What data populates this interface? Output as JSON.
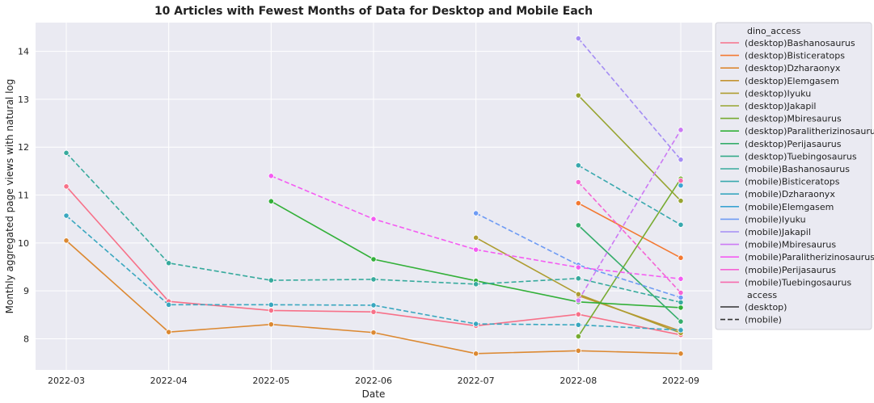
{
  "chart_data": {
    "type": "line",
    "title": "10 Articles with Fewest Months of Data for Desktop and Mobile Each",
    "xlabel": "Date",
    "ylabel": "Monthly aggregated page views with natural log",
    "x": [
      "2022-03",
      "2022-04",
      "2022-05",
      "2022-06",
      "2022-07",
      "2022-08",
      "2022-09"
    ],
    "ylim": [
      7.35,
      14.6
    ],
    "yticks": [
      8,
      9,
      10,
      11,
      12,
      13,
      14
    ],
    "grid": true,
    "legend_placement": "outside-right",
    "legend_title_hue": "dino_access",
    "legend_title_style": "access",
    "style_entries": [
      {
        "label": "(desktop)",
        "dash": "solid"
      },
      {
        "label": "(mobile)",
        "dash": "dashed"
      }
    ],
    "series": [
      {
        "name": "(desktop)Bashanosaurus",
        "color": "#f77189",
        "dash": "solid",
        "values": [
          11.18,
          8.78,
          8.59,
          8.56,
          8.27,
          8.51,
          8.08
        ]
      },
      {
        "name": "(desktop)Bisticeratops",
        "color": "#f37932",
        "dash": "solid",
        "values": [
          null,
          null,
          null,
          null,
          null,
          10.83,
          9.69
        ]
      },
      {
        "name": "(desktop)Dzharaonyx",
        "color": "#dc8932",
        "dash": "solid",
        "values": [
          10.05,
          8.14,
          8.3,
          8.13,
          7.69,
          7.75,
          7.69
        ]
      },
      {
        "name": "(desktop)Elemgasem",
        "color": "#c39532",
        "dash": "solid",
        "values": [
          null,
          null,
          null,
          null,
          null,
          8.9,
          8.16
        ]
      },
      {
        "name": "(desktop)Iyuku",
        "color": "#ae9d31",
        "dash": "solid",
        "values": [
          null,
          null,
          null,
          null,
          10.11,
          8.93,
          8.12
        ]
      },
      {
        "name": "(desktop)Jakapil",
        "color": "#97a431",
        "dash": "solid",
        "values": [
          null,
          null,
          null,
          null,
          null,
          13.08,
          10.88
        ]
      },
      {
        "name": "(desktop)Mbiresaurus",
        "color": "#77ab31",
        "dash": "solid",
        "values": [
          null,
          null,
          null,
          null,
          null,
          8.05,
          11.34
        ]
      },
      {
        "name": "(desktop)Paralitherizinosaurus",
        "color": "#33b039",
        "dash": "solid",
        "values": [
          null,
          null,
          10.87,
          9.66,
          9.21,
          8.77,
          8.65
        ]
      },
      {
        "name": "(desktop)Perijasaurus",
        "color": "#35ad6b",
        "dash": "solid",
        "values": [
          null,
          null,
          null,
          null,
          null,
          10.37,
          8.36
        ]
      },
      {
        "name": "(desktop)Tuebingosaurus",
        "color": "#36ab8a",
        "dash": "solid",
        "values": [
          null,
          null,
          null,
          null,
          null,
          null,
          8.2
        ]
      },
      {
        "name": "(mobile)Bashanosaurus",
        "color": "#37aa9d",
        "dash": "dashed",
        "values": [
          11.88,
          9.58,
          9.22,
          9.24,
          9.14,
          9.26,
          8.76
        ]
      },
      {
        "name": "(mobile)Bisticeratops",
        "color": "#38a8ae",
        "dash": "dashed",
        "values": [
          null,
          null,
          null,
          null,
          null,
          11.62,
          10.38
        ]
      },
      {
        "name": "(mobile)Dzharaonyx",
        "color": "#39a7bf",
        "dash": "dashed",
        "values": [
          10.57,
          8.71,
          8.71,
          8.7,
          8.31,
          8.29,
          8.18
        ]
      },
      {
        "name": "(mobile)Elemgasem",
        "color": "#3ba3d3",
        "dash": "dashed",
        "values": [
          null,
          null,
          null,
          null,
          null,
          null,
          11.2
        ]
      },
      {
        "name": "(mobile)Iyuku",
        "color": "#6e9bf4",
        "dash": "dashed",
        "values": [
          null,
          null,
          null,
          null,
          10.62,
          9.54,
          8.86
        ]
      },
      {
        "name": "(mobile)Jakapil",
        "color": "#a48cf4",
        "dash": "dashed",
        "values": [
          null,
          null,
          null,
          null,
          null,
          14.27,
          11.74
        ]
      },
      {
        "name": "(mobile)Mbiresaurus",
        "color": "#cc7af4",
        "dash": "dashed",
        "values": [
          null,
          null,
          null,
          null,
          null,
          8.8,
          12.36
        ]
      },
      {
        "name": "(mobile)Paralitherizinosaurus",
        "color": "#f45cf2",
        "dash": "dashed",
        "values": [
          null,
          null,
          11.4,
          10.5,
          9.86,
          9.49,
          9.25
        ]
      },
      {
        "name": "(mobile)Perijasaurus",
        "color": "#f564d4",
        "dash": "dashed",
        "values": [
          null,
          null,
          null,
          null,
          null,
          11.27,
          8.96
        ]
      },
      {
        "name": "(mobile)Tuebingosaurus",
        "color": "#f66bad",
        "dash": "dashed",
        "values": [
          null,
          null,
          null,
          null,
          null,
          null,
          11.3
        ]
      }
    ]
  }
}
